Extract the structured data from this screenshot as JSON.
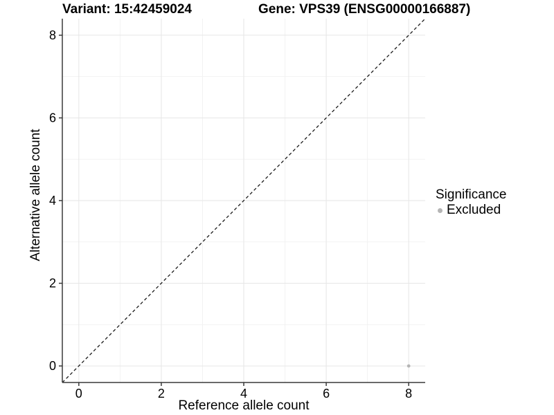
{
  "figure": {
    "background": "#ffffff"
  },
  "chart_data": {
    "type": "scatter",
    "titles": {
      "left": "Variant: 15:42459024",
      "right": "Gene: VPS39 (ENSG00000166887)"
    },
    "xlabel": "Reference allele count",
    "ylabel": "Alternative allele count",
    "xlim": [
      -0.4,
      8.4
    ],
    "ylim": [
      -0.4,
      8.4
    ],
    "xticks": [
      0,
      2,
      4,
      6,
      8
    ],
    "yticks": [
      0,
      2,
      4,
      6,
      8
    ],
    "xminor": [
      1,
      3,
      5,
      7
    ],
    "yminor": [
      1,
      3,
      5,
      7
    ],
    "grid": {
      "major_color": "#e6e6e6",
      "minor_color": "#f2f2f2",
      "on": true
    },
    "axis_color": "#383838",
    "text_color": "#000000",
    "reference_line": {
      "kind": "identity",
      "x1": -0.4,
      "y1": -0.4,
      "x2": 8.4,
      "y2": 8.4,
      "style": "dashed",
      "color": "#1a1a1a"
    },
    "points": [
      {
        "x": 8,
        "y": 0,
        "significance": "Excluded",
        "color": "#b5b5b5"
      }
    ],
    "legend": {
      "title": "Significance",
      "position": "right",
      "items": [
        {
          "label": "Excluded",
          "color": "#b5b5b5"
        }
      ]
    }
  }
}
